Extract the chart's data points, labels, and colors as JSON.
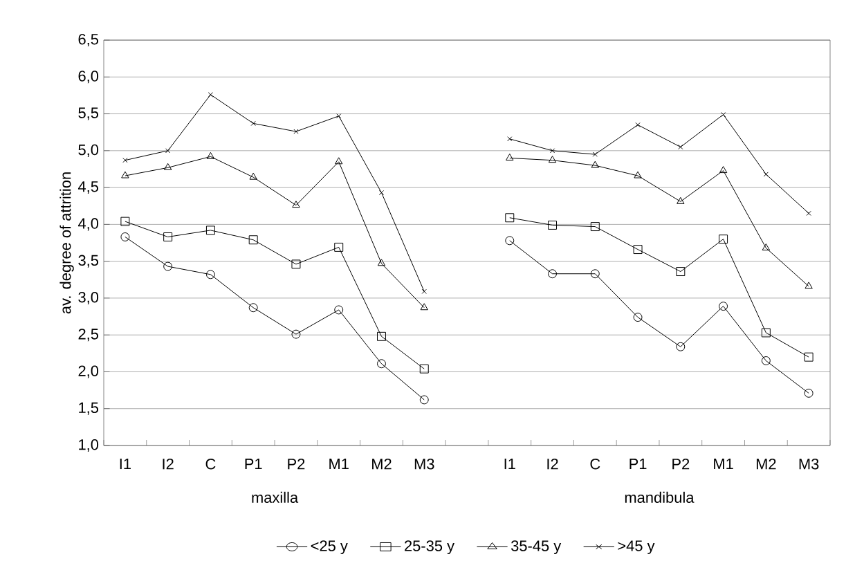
{
  "chart_data": {
    "type": "line",
    "ylabel": "av. degree of attrition",
    "categories": [
      "I1",
      "I2",
      "C",
      "P1",
      "P2",
      "M1",
      "M2",
      "M3",
      null,
      "I1",
      "I2",
      "C",
      "P1",
      "P2",
      "M1",
      "M2",
      "M3"
    ],
    "annotations": [
      "maxilla",
      "mandibula"
    ],
    "series": [
      {
        "name": "<25 y",
        "color": "#000000",
        "marker": "circle",
        "values": [
          3.83,
          3.43,
          3.32,
          2.87,
          2.51,
          2.84,
          2.11,
          1.62,
          null,
          3.78,
          3.33,
          3.33,
          2.74,
          2.34,
          2.89,
          2.15,
          1.71
        ]
      },
      {
        "name": "25-35 y",
        "color": "#000000",
        "marker": "square",
        "values": [
          4.04,
          3.83,
          3.92,
          3.79,
          3.46,
          3.69,
          2.48,
          2.04,
          null,
          4.09,
          3.99,
          3.97,
          3.66,
          3.36,
          3.8,
          2.53,
          2.2
        ]
      },
      {
        "name": "35-45 y",
        "color": "#000000",
        "marker": "triangle",
        "values": [
          4.66,
          4.77,
          4.92,
          4.64,
          4.26,
          4.85,
          3.47,
          2.87,
          null,
          4.9,
          4.87,
          4.8,
          4.66,
          4.31,
          4.73,
          3.68,
          3.16
        ]
      },
      {
        "name": ">45 y",
        "color": "#000000",
        "marker": "cross",
        "values": [
          4.87,
          5.0,
          5.76,
          5.37,
          5.26,
          5.47,
          4.43,
          3.09,
          null,
          5.16,
          5.0,
          4.95,
          5.35,
          5.05,
          5.49,
          4.68,
          4.15
        ]
      }
    ],
    "ylim": [
      1.0,
      6.5
    ],
    "yticks": [
      {
        "value": 1.0,
        "label": "1,0"
      },
      {
        "value": 1.5,
        "label": "1,5"
      },
      {
        "value": 2.0,
        "label": "2,0"
      },
      {
        "value": 2.5,
        "label": "2,5"
      },
      {
        "value": 3.0,
        "label": "3,0"
      },
      {
        "value": 3.5,
        "label": "3,5"
      },
      {
        "value": 4.0,
        "label": "4,0"
      },
      {
        "value": 4.5,
        "label": "4,5"
      },
      {
        "value": 5.0,
        "label": "5,0"
      },
      {
        "value": 5.5,
        "label": "5,5"
      },
      {
        "value": 6.0,
        "label": "6,0"
      },
      {
        "value": 6.5,
        "label": "6,5"
      }
    ],
    "grid": "y",
    "legend": "bottom"
  }
}
